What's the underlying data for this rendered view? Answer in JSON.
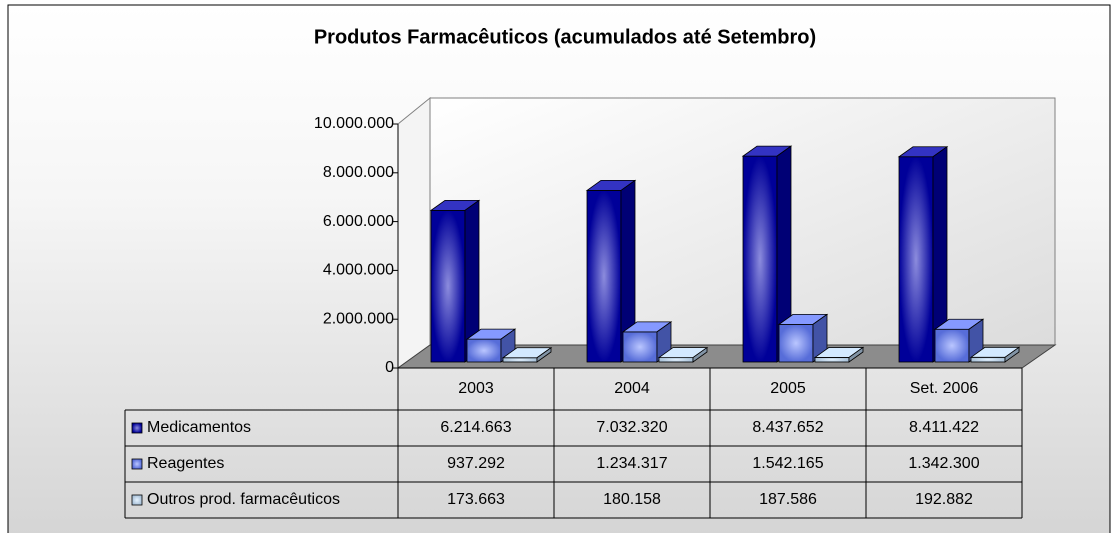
{
  "chart_data": {
    "type": "bar3d",
    "title": "Produtos Farmacêuticos (acumulados até Setembro)",
    "categories": [
      "2003",
      "2004",
      "2005",
      "Set. 2006"
    ],
    "series": [
      {
        "name": "Medicamentos",
        "color": "#0000b4",
        "values": [
          6214663,
          7032320,
          8437652,
          8411422
        ],
        "value_labels": [
          "6.214.663",
          "7.032.320",
          "8.437.652",
          "8.411.422"
        ]
      },
      {
        "name": "Reagentes",
        "color": "#6680ff",
        "values": [
          937292,
          1234317,
          1542165,
          1342300
        ],
        "value_labels": [
          "937.292",
          "1.234.317",
          "1.542.165",
          "1.342.300"
        ]
      },
      {
        "name": "Outros prod. farmacêuticos",
        "color": "#c8e4ff",
        "values": [
          173663,
          180158,
          187586,
          192882
        ],
        "value_labels": [
          "173.663",
          "180.158",
          "187.586",
          "192.882"
        ]
      }
    ],
    "ylim": [
      0,
      10000000
    ],
    "yticks": [
      0,
      {
        "value": 2000000,
        "label": "2.000.000"
      },
      {
        "value": 4000000,
        "label": "4.000.000"
      },
      {
        "value": 6000000,
        "label": "6.000.000"
      },
      {
        "value": 8000000,
        "label": "8.000.000"
      },
      {
        "value": 10000000,
        "label": "10.000.000"
      }
    ],
    "data_table": true
  }
}
